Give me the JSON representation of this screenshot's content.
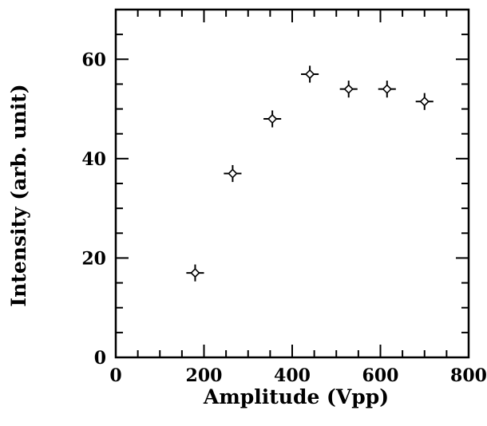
{
  "chart_data": {
    "type": "scatter",
    "xlabel": "Amplitude (Vpp)",
    "ylabel": "Intensity (arb. unit)",
    "xlim": [
      0,
      800
    ],
    "ylim": [
      0,
      70
    ],
    "xticks": [
      0,
      200,
      400,
      600,
      800
    ],
    "yticks": [
      0,
      20,
      40,
      60
    ],
    "x_minor_step": 50,
    "y_minor_step": 5,
    "grid": false,
    "marker": "open-diamond",
    "series": [
      {
        "x": [
          180,
          265,
          355,
          440,
          528,
          615,
          700
        ],
        "y": [
          17,
          37,
          48,
          57,
          54,
          54,
          51.5
        ],
        "x_err": [
          20,
          20,
          20,
          20,
          20,
          20,
          20
        ],
        "y_err": [
          1.7,
          1.7,
          1.7,
          1.7,
          1.7,
          1.7,
          1.7
        ]
      }
    ]
  }
}
